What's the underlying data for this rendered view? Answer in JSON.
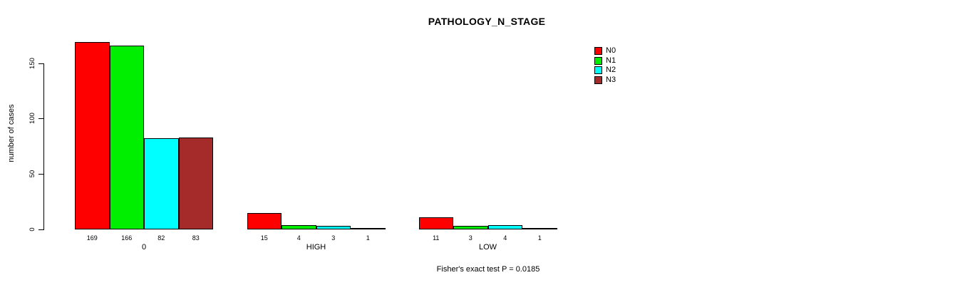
{
  "title": "PATHOLOGY_N_STAGE",
  "annotation": "Fisher's exact test P = 0.0185",
  "chart_data": {
    "type": "bar",
    "grouped": true,
    "title": "PATHOLOGY_N_STAGE",
    "categories": [
      "0",
      "HIGH",
      "LOW"
    ],
    "series": [
      {
        "name": "N0",
        "color": "#FF0000",
        "values": [
          169,
          15,
          11
        ]
      },
      {
        "name": "N1",
        "color": "#00EE00",
        "values": [
          166,
          4,
          3
        ]
      },
      {
        "name": "N2",
        "color": "#00FFFF",
        "values": [
          82,
          3,
          4
        ]
      },
      {
        "name": "N3",
        "color": "#A52A2A",
        "values": [
          83,
          1,
          1
        ]
      }
    ],
    "xlabel": "",
    "ylabel": "number of cases",
    "yticks": [
      0,
      50,
      100,
      150
    ],
    "ylim": [
      0,
      169
    ],
    "grid": false,
    "legend_position": "top-right",
    "bar_value_labels": true,
    "annotation": "Fisher's exact test P = 0.0185"
  }
}
